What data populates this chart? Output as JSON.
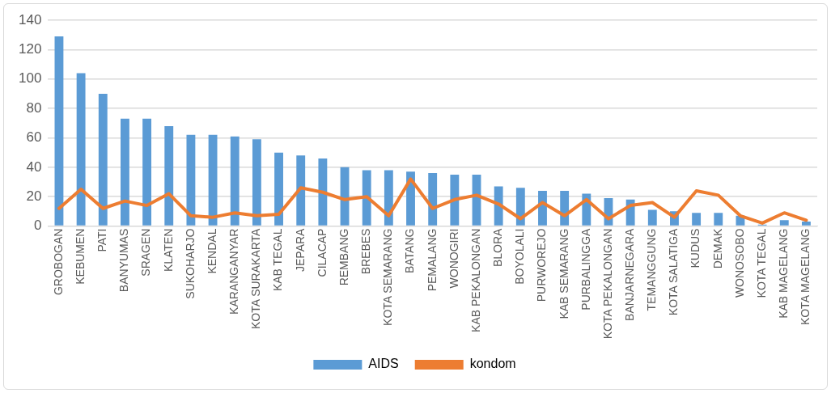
{
  "chart_data": {
    "type": "bar",
    "categories": [
      "GROBOGAN",
      "KEBUMEN",
      "PATI",
      "BANYUMAS",
      "SRAGEN",
      "KLATEN",
      "SUKOHARJO",
      "KENDAL",
      "KARANGANYAR",
      "KOTA SURAKARTA",
      "KAB TEGAL",
      "JEPARA",
      "CILACAP",
      "REMBANG",
      "BREBES",
      "KOTA SEMARANG",
      "BATANG",
      "PEMALANG",
      "WONOGIRI",
      "KAB PEKALONGAN",
      "BLORA",
      "BOYOLALI",
      "PURWOREJO",
      "KAB SEMARANG",
      "PURBALINGGA",
      "KOTA PEKALONGAN",
      "BANJARNEGARA",
      "TEMANGGUNG",
      "KOTA SALATIGA",
      "KUDUS",
      "DEMAK",
      "WONOSOBO",
      "KOTA TEGAL",
      "KAB MAGELANG",
      "KOTA MAGELANG"
    ],
    "series": [
      {
        "name": "AIDS",
        "color": "#5b9bd5",
        "values": [
          129,
          104,
          90,
          73,
          73,
          68,
          62,
          62,
          61,
          59,
          50,
          48,
          46,
          40,
          38,
          38,
          37,
          36,
          35,
          35,
          27,
          26,
          24,
          24,
          22,
          19,
          18,
          11,
          10,
          9,
          9,
          7,
          1,
          4,
          3
        ]
      },
      {
        "name": "kondom",
        "type": "line",
        "color": "#ed7d31",
        "values": [
          12,
          25,
          12,
          17,
          14,
          22,
          7,
          6,
          9,
          7,
          8,
          26,
          23,
          18,
          20,
          7,
          32,
          12,
          18,
          21,
          15,
          5,
          16,
          7,
          18,
          5,
          14,
          16,
          6,
          24,
          21,
          7,
          2,
          9,
          4
        ]
      }
    ],
    "ylim": [
      0,
      140
    ],
    "yticks": [
      0,
      20,
      40,
      60,
      80,
      100,
      120,
      140
    ],
    "grid": "y",
    "legend": "bottom",
    "marker": "none"
  }
}
